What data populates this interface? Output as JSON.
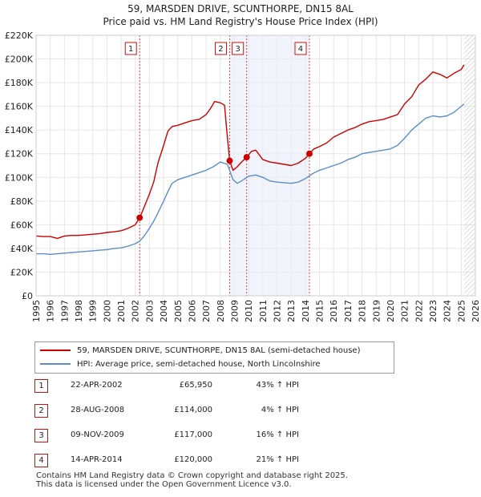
{
  "title_line1": "59, MARSDEN DRIVE, SCUNTHORPE, DN15 8AL",
  "title_line2": "Price paid vs. HM Land Registry's House Price Index (HPI)",
  "colors": {
    "property_line": "#cc0000",
    "hpi_line": "#5b8ec9",
    "grid": "#e6e6e6",
    "marker_line": "#dd4444",
    "band": "#e8eef8"
  },
  "legend": {
    "property_label": "59, MARSDEN DRIVE, SCUNTHORPE, DN15 8AL (semi-detached house)",
    "hpi_label": "HPI: Average price, semi-detached house, North Lincolnshire"
  },
  "sales": [
    {
      "num": "1",
      "date": "22-APR-2002",
      "price": "£65,950",
      "hpi": "43% ↑ HPI"
    },
    {
      "num": "2",
      "date": "28-AUG-2008",
      "price": "£114,000",
      "hpi": "4% ↑ HPI"
    },
    {
      "num": "3",
      "date": "09-NOV-2009",
      "price": "£117,000",
      "hpi": "16% ↑ HPI"
    },
    {
      "num": "4",
      "date": "14-APR-2014",
      "price": "£120,000",
      "hpi": "21% ↑ HPI"
    }
  ],
  "footer_line1": "Contains HM Land Registry data © Crown copyright and database right 2025.",
  "footer_line2": "This data is licensed under the Open Government Licence v3.0.",
  "chart_data": {
    "type": "line",
    "title": "59, MARSDEN DRIVE, SCUNTHORPE, DN15 8AL",
    "subtitle": "Price paid vs. HM Land Registry's House Price Index (HPI)",
    "xlabel": "",
    "ylabel": "",
    "xlim": [
      1995,
      2026
    ],
    "ylim": [
      0,
      220000
    ],
    "x_ticks": [
      1995,
      1996,
      1997,
      1998,
      1999,
      2000,
      2001,
      2002,
      2003,
      2004,
      2005,
      2006,
      2007,
      2008,
      2009,
      2010,
      2011,
      2012,
      2013,
      2014,
      2015,
      2016,
      2017,
      2018,
      2019,
      2020,
      2021,
      2022,
      2023,
      2024,
      2025,
      2026
    ],
    "y_ticks": [
      0,
      20000,
      40000,
      60000,
      80000,
      100000,
      120000,
      140000,
      160000,
      180000,
      200000,
      220000
    ],
    "y_tick_labels": [
      "£0",
      "£20K",
      "£40K",
      "£60K",
      "£80K",
      "£100K",
      "£120K",
      "£140K",
      "£160K",
      "£180K",
      "£200K",
      "£220K"
    ],
    "grid": true,
    "future_hatch_from": 2025.2,
    "sale_markers": [
      {
        "label": "1",
        "x": 2002.31,
        "y": 65950
      },
      {
        "label": "2",
        "x": 2008.66,
        "y": 114000
      },
      {
        "label": "3",
        "x": 2009.86,
        "y": 117000
      },
      {
        "label": "4",
        "x": 2014.29,
        "y": 120000
      }
    ],
    "series": [
      {
        "name": "59, MARSDEN DRIVE, SCUNTHORPE, DN15 8AL (semi-detached house)",
        "x": [
          1995.0,
          1995.5,
          1996.0,
          1996.5,
          1997.0,
          1997.5,
          1998.0,
          1998.5,
          1999.0,
          1999.5,
          2000.0,
          2000.5,
          2001.0,
          2001.5,
          2002.0,
          2002.31,
          2002.6,
          2003.0,
          2003.3,
          2003.6,
          2004.0,
          2004.3,
          2004.6,
          2005.0,
          2005.5,
          2006.0,
          2006.5,
          2007.0,
          2007.3,
          2007.6,
          2008.0,
          2008.3,
          2008.45,
          2008.66,
          2008.9,
          2009.2,
          2009.5,
          2009.86,
          2010.2,
          2010.5,
          2011.0,
          2011.5,
          2012.0,
          2012.5,
          2013.0,
          2013.5,
          2014.0,
          2014.29,
          2014.6,
          2015.0,
          2015.5,
          2016.0,
          2016.5,
          2017.0,
          2017.5,
          2018.0,
          2018.5,
          2019.0,
          2019.5,
          2020.0,
          2020.5,
          2021.0,
          2021.5,
          2022.0,
          2022.5,
          2023.0,
          2023.5,
          2024.0,
          2024.5,
          2025.0,
          2025.2
        ],
        "values": [
          50500,
          50000,
          50000,
          48500,
          50500,
          51000,
          51000,
          51500,
          52000,
          52500,
          53500,
          54000,
          55000,
          57000,
          60000,
          65950,
          74000,
          86000,
          96000,
          112000,
          127000,
          139000,
          143000,
          144000,
          146000,
          148000,
          149000,
          153000,
          158000,
          164000,
          163000,
          161000,
          140000,
          114000,
          106000,
          109000,
          113000,
          117000,
          122000,
          123000,
          115000,
          113000,
          112000,
          111000,
          110000,
          112000,
          116000,
          120000,
          124000,
          126000,
          129000,
          134000,
          137000,
          140000,
          142000,
          145000,
          147000,
          148000,
          149000,
          151000,
          153000,
          162000,
          168000,
          178000,
          183000,
          189000,
          187000,
          184000,
          188000,
          191000,
          195000
        ]
      },
      {
        "name": "HPI: Average price, semi-detached house, North Lincolnshire",
        "x": [
          1995.0,
          1995.5,
          1996.0,
          1996.5,
          1997.0,
          1997.5,
          1998.0,
          1998.5,
          1999.0,
          1999.5,
          2000.0,
          2000.5,
          2001.0,
          2001.5,
          2002.0,
          2002.3,
          2002.6,
          2003.0,
          2003.3,
          2003.6,
          2004.0,
          2004.3,
          2004.6,
          2005.0,
          2005.5,
          2006.0,
          2006.5,
          2007.0,
          2007.5,
          2008.0,
          2008.5,
          2008.9,
          2009.2,
          2009.5,
          2010.0,
          2010.5,
          2011.0,
          2011.5,
          2012.0,
          2012.5,
          2013.0,
          2013.5,
          2014.0,
          2014.5,
          2015.0,
          2015.5,
          2016.0,
          2016.5,
          2017.0,
          2017.5,
          2018.0,
          2018.5,
          2019.0,
          2019.5,
          2020.0,
          2020.5,
          2021.0,
          2021.5,
          2022.0,
          2022.5,
          2023.0,
          2023.5,
          2024.0,
          2024.5,
          2025.0,
          2025.2
        ],
        "values": [
          35500,
          35500,
          35000,
          35500,
          36000,
          36500,
          37000,
          37500,
          38000,
          38500,
          39000,
          40000,
          40500,
          42000,
          44000,
          46000,
          50000,
          57000,
          63000,
          70000,
          80000,
          88000,
          95000,
          98000,
          100000,
          102000,
          104000,
          106000,
          109000,
          113000,
          111000,
          98000,
          95000,
          97000,
          101000,
          102000,
          100000,
          97000,
          96000,
          95500,
          95000,
          96000,
          99000,
          103000,
          106000,
          108000,
          110000,
          112000,
          115000,
          117000,
          120000,
          121000,
          122000,
          123000,
          124000,
          127000,
          133000,
          140000,
          145000,
          150000,
          152000,
          151000,
          152000,
          155000,
          160000,
          162000
        ]
      }
    ]
  }
}
